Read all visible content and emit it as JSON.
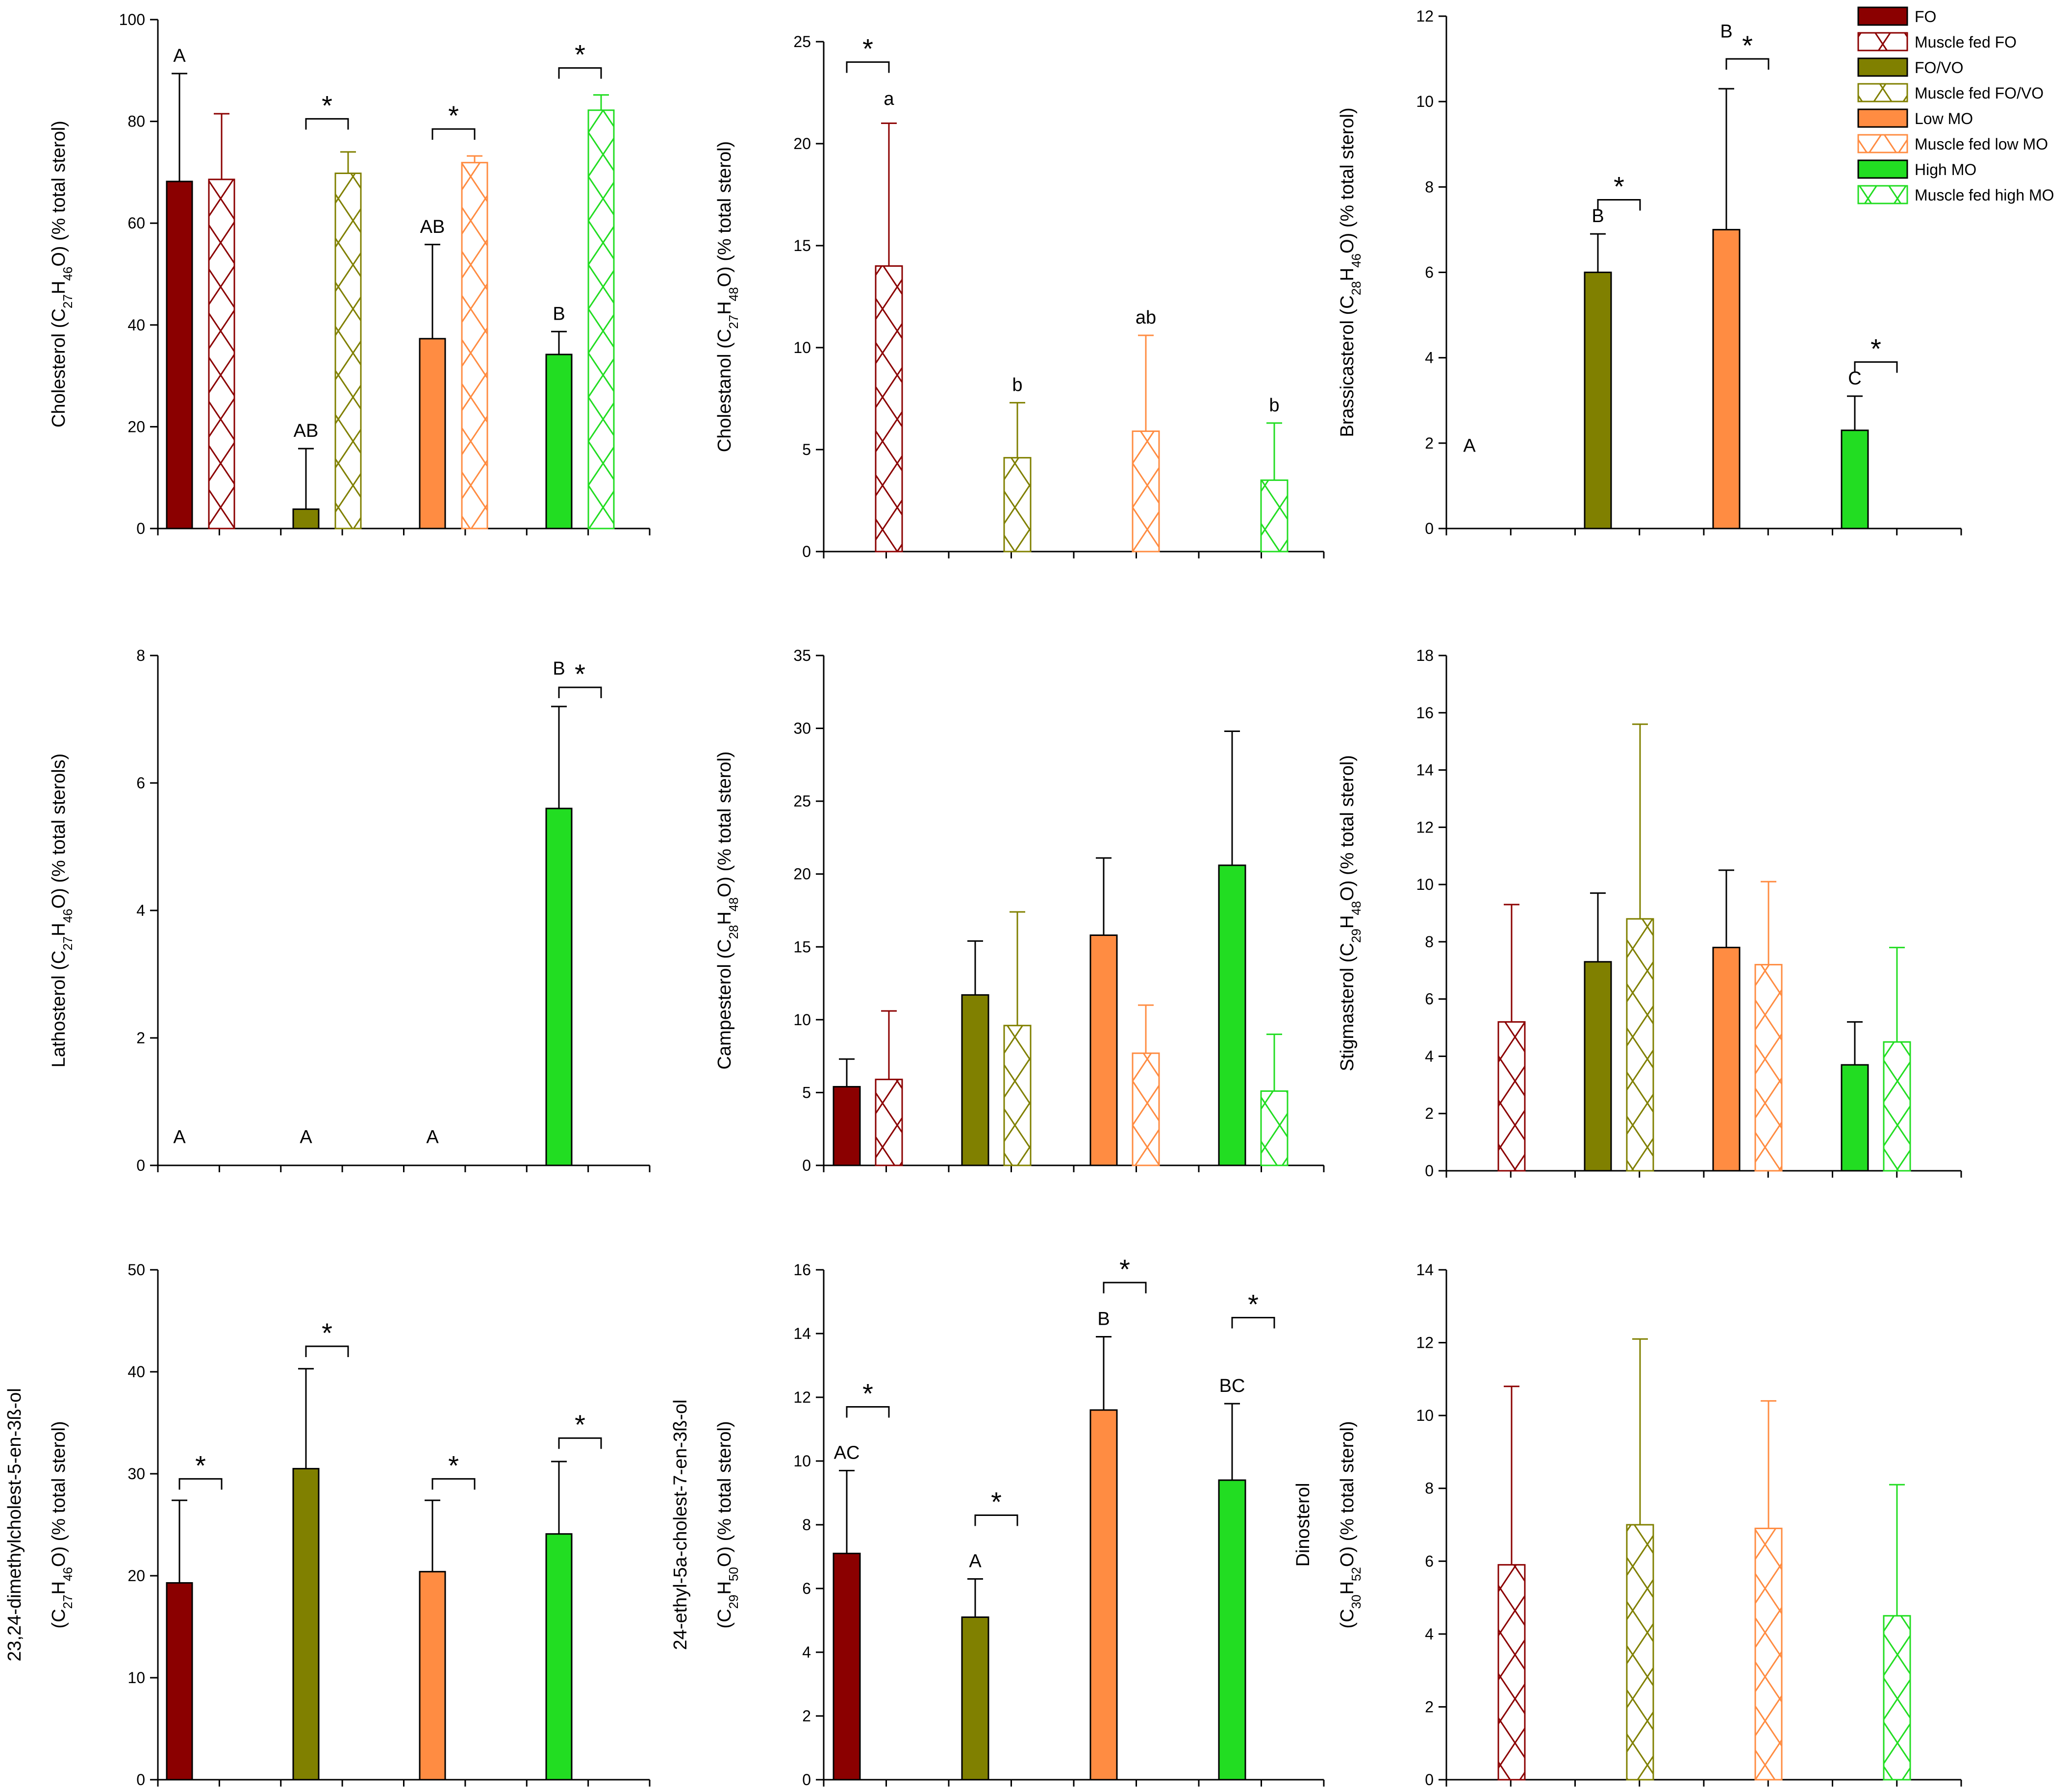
{
  "legend": [
    {
      "label": "FO",
      "color": "#8B0000",
      "hatched": false
    },
    {
      "label": "Muscle fed FO",
      "color": "#8B0000",
      "hatched": true
    },
    {
      "label": "FO/VO",
      "color": "#808000",
      "hatched": false
    },
    {
      "label": "Muscle fed FO/VO",
      "color": "#808000",
      "hatched": true
    },
    {
      "label": "Low MO",
      "color": "#FF8C42",
      "hatched": false
    },
    {
      "label": "Muscle fed low MO",
      "color": "#FF8C42",
      "hatched": true
    },
    {
      "label": "High MO",
      "color": "#22DD22",
      "hatched": false
    },
    {
      "label": "Muscle fed high MO",
      "color": "#22DD22",
      "hatched": true
    }
  ],
  "chart_data": [
    {
      "type": "bar",
      "id": "cholesterol",
      "ylabel": {
        "pre": "Cholesterol (C",
        "s1": "27",
        "m1": "H",
        "s2": "46",
        "post": "O) (% total sterol)"
      },
      "ylim": [
        0,
        100
      ],
      "yticks": [
        0,
        20,
        40,
        60,
        80,
        100
      ],
      "values": [
        68.2,
        68.6,
        3.8,
        69.8,
        37.3,
        71.9,
        34.2,
        82.2
      ],
      "errors": [
        89.4,
        81.5,
        15.7,
        74.0,
        55.8,
        73.2,
        38.7,
        85.2
      ],
      "letters": [
        {
          "bar": 0,
          "text": "A"
        },
        {
          "bar": 2,
          "text": "AB"
        },
        {
          "bar": 4,
          "text": "AB"
        },
        {
          "bar": 6,
          "text": "B"
        }
      ],
      "brackets": [
        {
          "group": 1,
          "y": 80.5
        },
        {
          "group": 2,
          "y": 78.5
        },
        {
          "group": 3,
          "y": 90.5
        }
      ]
    },
    {
      "type": "bar",
      "id": "cholestanol",
      "ylabel": {
        "pre": "Cholestanol (C",
        "s1": "27",
        "m1": "H",
        "s2": "48",
        "post": "O) (% total sterol)"
      },
      "ylim": [
        0,
        25
      ],
      "yticks": [
        0,
        5,
        10,
        15,
        20,
        25
      ],
      "values": [
        null,
        14.0,
        null,
        4.6,
        null,
        5.9,
        null,
        3.5
      ],
      "errors": [
        null,
        21.0,
        null,
        7.3,
        null,
        10.6,
        null,
        6.3
      ],
      "letters": [
        {
          "bar": 1,
          "text": "a",
          "y": 21.9
        },
        {
          "bar": 3,
          "text": "b"
        },
        {
          "bar": 5,
          "text": "ab"
        },
        {
          "bar": 7,
          "text": "b"
        }
      ],
      "brackets": [
        {
          "group": 0,
          "y": 24.0
        }
      ]
    },
    {
      "type": "bar",
      "id": "brassicasterol",
      "ylabel": {
        "pre": "Brassicasterol (C",
        "s1": "28",
        "m1": "H",
        "s2": "46",
        "post": "O) (% total sterol)"
      },
      "ylim": [
        0,
        12
      ],
      "yticks": [
        0,
        2,
        4,
        6,
        8,
        10,
        12
      ],
      "values": [
        null,
        null,
        6.0,
        null,
        7.0,
        null,
        2.3,
        null
      ],
      "errors": [
        null,
        null,
        6.9,
        null,
        10.3,
        null,
        3.1,
        null
      ],
      "letters": [
        {
          "bar": 0,
          "text": "A",
          "y": 1.8
        },
        {
          "bar": 2,
          "text": "B"
        },
        {
          "bar": 4,
          "text": "B",
          "y": 11.5
        },
        {
          "bar": 6,
          "text": "C"
        }
      ],
      "brackets": [
        {
          "group": 1,
          "y": 7.7
        },
        {
          "group": 2,
          "y": 11.0
        },
        {
          "group": 3,
          "y": 3.9
        }
      ]
    },
    {
      "type": "bar",
      "id": "lathosterol",
      "ylabel": {
        "pre": "Lathosterol (C",
        "s1": "27",
        "m1": "H",
        "s2": "46",
        "post": "O) (% total sterols)"
      },
      "ylim": [
        0,
        8
      ],
      "yticks": [
        0,
        2,
        4,
        6,
        8
      ],
      "values": [
        null,
        null,
        null,
        null,
        null,
        null,
        5.6,
        null
      ],
      "errors": [
        null,
        null,
        null,
        null,
        null,
        null,
        7.2,
        null
      ],
      "letters": [
        {
          "bar": 0,
          "text": "A",
          "y": 0.35
        },
        {
          "bar": 2,
          "text": "A",
          "y": 0.35
        },
        {
          "bar": 4,
          "text": "A",
          "y": 0.35
        },
        {
          "bar": 6,
          "text": "B",
          "y": 7.7
        }
      ],
      "brackets": [
        {
          "group": 3,
          "y": 7.5
        }
      ]
    },
    {
      "type": "bar",
      "id": "campesterol",
      "ylabel": {
        "pre": "Campesterol (C",
        "s1": "28",
        "m1": "H",
        "s2": "48",
        "post": "O) (% total sterol)"
      },
      "ylim": [
        0,
        35
      ],
      "yticks": [
        0,
        5,
        10,
        15,
        20,
        25,
        30,
        35
      ],
      "values": [
        5.4,
        5.9,
        11.7,
        9.6,
        15.8,
        7.7,
        20.6,
        5.1
      ],
      "errors": [
        7.3,
        10.6,
        15.4,
        17.4,
        21.1,
        11.0,
        29.8,
        9.0
      ],
      "letters": [],
      "brackets": []
    },
    {
      "type": "bar",
      "id": "stigmasterol",
      "ylabel": {
        "pre": "Stigmasterol (C",
        "s1": "29",
        "m1": "H",
        "s2": "48",
        "post": "O) (% total sterol)"
      },
      "ylim": [
        0,
        18
      ],
      "yticks": [
        0,
        2,
        4,
        6,
        8,
        10,
        12,
        14,
        16,
        18
      ],
      "values": [
        null,
        5.2,
        7.3,
        8.8,
        7.8,
        7.2,
        3.7,
        4.5
      ],
      "errors": [
        null,
        9.3,
        9.7,
        15.6,
        10.5,
        10.1,
        5.2,
        7.8
      ],
      "letters": [],
      "brackets": []
    },
    {
      "type": "bar",
      "id": "dimethylcholestenol",
      "ylabel": {
        "line1": "23,24-dimethylcholest-5-en-3ß-ol",
        "pre": "(C",
        "s1": "27",
        "m1": "H",
        "s2": "46",
        "post": "O) (% total sterol)"
      },
      "ylim": [
        0,
        50
      ],
      "yticks": [
        0,
        10,
        20,
        30,
        40,
        50
      ],
      "values": [
        19.3,
        null,
        30.5,
        null,
        20.4,
        null,
        24.1,
        null
      ],
      "errors": [
        27.4,
        null,
        40.3,
        null,
        27.4,
        null,
        31.2,
        null
      ],
      "letters": [],
      "brackets": [
        {
          "group": 0,
          "y": 29.5
        },
        {
          "group": 1,
          "y": 42.5
        },
        {
          "group": 2,
          "y": 29.5
        },
        {
          "group": 3,
          "y": 33.5
        }
      ]
    },
    {
      "type": "bar",
      "id": "ethylcholestenol",
      "ylabel": {
        "line1": "24-ethyl-5a-cholest-7-en-3ß-ol",
        "pre": "(C",
        "s1": "29",
        "m1": "H",
        "s2": "50",
        "post": "O) (% total sterol)"
      },
      "ylim": [
        0,
        16
      ],
      "yticks": [
        0,
        2,
        4,
        6,
        8,
        10,
        12,
        14,
        16
      ],
      "values": [
        7.1,
        null,
        5.1,
        null,
        11.6,
        null,
        9.4,
        null
      ],
      "errors": [
        9.7,
        null,
        6.3,
        null,
        13.9,
        null,
        11.8,
        null
      ],
      "letters": [
        {
          "bar": 0,
          "text": "AC"
        },
        {
          "bar": 2,
          "text": "A"
        },
        {
          "bar": 4,
          "text": "B"
        },
        {
          "bar": 6,
          "text": "BC"
        }
      ],
      "brackets": [
        {
          "group": 0,
          "y": 11.7
        },
        {
          "group": 1,
          "y": 8.3
        },
        {
          "group": 2,
          "y": 15.6
        },
        {
          "group": 3,
          "y": 14.5
        }
      ]
    },
    {
      "type": "bar",
      "id": "dinosterol",
      "ylabel": {
        "line1": "Dinosterol",
        "pre": "(C",
        "s1": "30",
        "m1": "H",
        "s2": "52",
        "post": "O) (% total sterol)"
      },
      "ylim": [
        0,
        14
      ],
      "yticks": [
        0,
        2,
        4,
        6,
        8,
        10,
        12,
        14
      ],
      "values": [
        null,
        5.9,
        null,
        7.0,
        null,
        6.9,
        null,
        4.5
      ],
      "errors": [
        null,
        10.8,
        null,
        12.1,
        null,
        10.4,
        null,
        8.1
      ],
      "letters": [],
      "brackets": []
    }
  ]
}
